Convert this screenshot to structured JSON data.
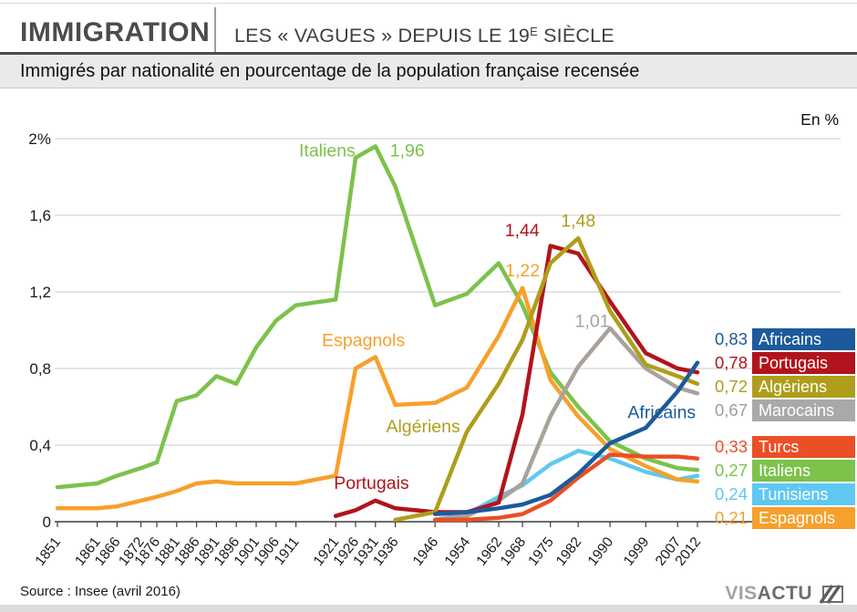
{
  "header": {
    "brand": "IMMIGRATION",
    "title_prefix": "LES « VAGUES » DEPUIS LE 19",
    "title_superscript": "E",
    "title_suffix": " SIÈCLE"
  },
  "subtitle": "Immigrés par nationalité en pourcentage de la population française recensée",
  "chart_data": {
    "type": "line",
    "title": "Immigrés par nationalité en pourcentage de la population française recensée",
    "unit_label": "En %",
    "xlim": [
      1851,
      2012
    ],
    "ylim": [
      0,
      2.0
    ],
    "grid": true,
    "legend_position": "right",
    "x_years": [
      1851,
      1861,
      1866,
      1872,
      1876,
      1881,
      1886,
      1891,
      1896,
      1901,
      1906,
      1911,
      1921,
      1926,
      1931,
      1936,
      1946,
      1954,
      1962,
      1968,
      1975,
      1982,
      1990,
      1999,
      2007,
      2012
    ],
    "y_ticks": [
      {
        "value": 0,
        "label": "0"
      },
      {
        "value": 0.4,
        "label": "0,4"
      },
      {
        "value": 0.8,
        "label": "0,8"
      },
      {
        "value": 1.2,
        "label": "1,2"
      },
      {
        "value": 1.6,
        "label": "1,6"
      },
      {
        "value": 2,
        "label": "2%"
      }
    ],
    "grid_values": [
      0.4,
      0.8,
      1.2,
      1.6,
      2
    ],
    "series": [
      {
        "name": "Tunisiens",
        "color": "#5ec8f2",
        "points": [
          [
            1946,
            0.01
          ],
          [
            1954,
            0.04
          ],
          [
            1962,
            0.13
          ],
          [
            1968,
            0.19
          ],
          [
            1975,
            0.3
          ],
          [
            1982,
            0.37
          ],
          [
            1990,
            0.33
          ],
          [
            1999,
            0.26
          ],
          [
            2007,
            0.22
          ],
          [
            2012,
            0.24
          ]
        ]
      },
      {
        "name": "Italiens",
        "color": "#7cc24b",
        "points": [
          [
            1851,
            0.18
          ],
          [
            1861,
            0.2
          ],
          [
            1866,
            0.24
          ],
          [
            1872,
            0.28
          ],
          [
            1876,
            0.31
          ],
          [
            1881,
            0.63
          ],
          [
            1886,
            0.66
          ],
          [
            1891,
            0.76
          ],
          [
            1896,
            0.72
          ],
          [
            1901,
            0.91
          ],
          [
            1906,
            1.05
          ],
          [
            1911,
            1.13
          ],
          [
            1921,
            1.16
          ],
          [
            1926,
            1.9
          ],
          [
            1931,
            1.96
          ],
          [
            1936,
            1.75
          ],
          [
            1946,
            1.13
          ],
          [
            1954,
            1.19
          ],
          [
            1962,
            1.35
          ],
          [
            1968,
            1.13
          ],
          [
            1975,
            0.78
          ],
          [
            1982,
            0.6
          ],
          [
            1990,
            0.42
          ],
          [
            1999,
            0.33
          ],
          [
            2007,
            0.28
          ],
          [
            2012,
            0.27
          ]
        ]
      },
      {
        "name": "Espagnols",
        "color": "#f7a02b",
        "points": [
          [
            1851,
            0.07
          ],
          [
            1861,
            0.07
          ],
          [
            1866,
            0.08
          ],
          [
            1872,
            0.11
          ],
          [
            1876,
            0.13
          ],
          [
            1881,
            0.16
          ],
          [
            1886,
            0.2
          ],
          [
            1891,
            0.21
          ],
          [
            1896,
            0.2
          ],
          [
            1901,
            0.2
          ],
          [
            1906,
            0.2
          ],
          [
            1911,
            0.2
          ],
          [
            1921,
            0.24
          ],
          [
            1926,
            0.8
          ],
          [
            1931,
            0.86
          ],
          [
            1936,
            0.61
          ],
          [
            1946,
            0.62
          ],
          [
            1954,
            0.7
          ],
          [
            1962,
            0.97
          ],
          [
            1968,
            1.22
          ],
          [
            1975,
            0.74
          ],
          [
            1982,
            0.55
          ],
          [
            1990,
            0.38
          ],
          [
            1999,
            0.29
          ],
          [
            2007,
            0.22
          ],
          [
            2012,
            0.21
          ]
        ]
      },
      {
        "name": "Marocains",
        "color": "#a8a29b",
        "points": [
          [
            1946,
            0.01
          ],
          [
            1954,
            0.03
          ],
          [
            1962,
            0.11
          ],
          [
            1968,
            0.2
          ],
          [
            1975,
            0.55
          ],
          [
            1982,
            0.81
          ],
          [
            1990,
            1.01
          ],
          [
            1999,
            0.8
          ],
          [
            2007,
            0.7
          ],
          [
            2012,
            0.67
          ]
        ]
      },
      {
        "name": "Portugais",
        "color": "#b1141c",
        "points": [
          [
            1921,
            0.03
          ],
          [
            1926,
            0.06
          ],
          [
            1931,
            0.11
          ],
          [
            1936,
            0.07
          ],
          [
            1946,
            0.05
          ],
          [
            1954,
            0.05
          ],
          [
            1962,
            0.1
          ],
          [
            1968,
            0.56
          ],
          [
            1975,
            1.44
          ],
          [
            1982,
            1.4
          ],
          [
            1990,
            1.15
          ],
          [
            1999,
            0.88
          ],
          [
            2007,
            0.8
          ],
          [
            2012,
            0.78
          ]
        ]
      },
      {
        "name": "Algériens",
        "color": "#ae9e1b",
        "points": [
          [
            1936,
            0.01
          ],
          [
            1946,
            0.05
          ],
          [
            1954,
            0.47
          ],
          [
            1962,
            0.72
          ],
          [
            1968,
            0.95
          ],
          [
            1975,
            1.35
          ],
          [
            1982,
            1.48
          ],
          [
            1990,
            1.1
          ],
          [
            1999,
            0.82
          ],
          [
            2007,
            0.76
          ],
          [
            2012,
            0.72
          ]
        ]
      },
      {
        "name": "Turcs",
        "color": "#ea4f26",
        "points": [
          [
            1946,
            0.01
          ],
          [
            1954,
            0.01
          ],
          [
            1962,
            0.02
          ],
          [
            1968,
            0.04
          ],
          [
            1975,
            0.11
          ],
          [
            1982,
            0.23
          ],
          [
            1990,
            0.35
          ],
          [
            1999,
            0.34
          ],
          [
            2007,
            0.34
          ],
          [
            2012,
            0.33
          ]
        ]
      },
      {
        "name": "Africains",
        "color": "#1c5a9c",
        "points": [
          [
            1946,
            0.04
          ],
          [
            1954,
            0.05
          ],
          [
            1962,
            0.07
          ],
          [
            1968,
            0.09
          ],
          [
            1975,
            0.14
          ],
          [
            1982,
            0.25
          ],
          [
            1990,
            0.41
          ],
          [
            1999,
            0.49
          ],
          [
            2007,
            0.68
          ],
          [
            2012,
            0.83
          ]
        ]
      }
    ],
    "annotations": [
      {
        "text": "Italiens",
        "color": "#7cc24b",
        "year": 1931,
        "value": 1.94,
        "anchor": "end",
        "dx": -22
      },
      {
        "text": "1,96",
        "color": "#7cc24b",
        "year": 1931,
        "value": 1.94,
        "anchor": "start",
        "dx": 16
      },
      {
        "text": "1,44",
        "color": "#b1141c",
        "year": 1975,
        "value": 1.525,
        "anchor": "end",
        "dx": -12
      },
      {
        "text": "1,48",
        "color": "#ae9e1b",
        "year": 1982,
        "value": 1.575,
        "anchor": "middle",
        "dx": 0
      },
      {
        "text": "1,22",
        "color": "#f7a02b",
        "year": 1968,
        "value": 1.315,
        "anchor": "middle",
        "dx": 0
      },
      {
        "text": "1,01",
        "color": "#a3a3a3",
        "year": 1986,
        "value": 1.05,
        "anchor": "middle",
        "dx": -2
      },
      {
        "text": "Espagnols",
        "color": "#f7a02b",
        "year": 1928,
        "value": 0.95,
        "anchor": "middle",
        "dx": 0
      },
      {
        "text": "Algériens",
        "color": "#ae9e1b",
        "year": 1943,
        "value": 0.5,
        "anchor": "middle",
        "dx": 0
      },
      {
        "text": "Portugais",
        "color": "#b1141c",
        "year": 1930,
        "value": 0.205,
        "anchor": "middle",
        "dx": 0
      },
      {
        "text": "Africains",
        "color": "#1c5a9c",
        "year": 2003,
        "value": 0.575,
        "anchor": "middle",
        "dx": 0
      }
    ],
    "legend": {
      "groups": [
        {
          "rows": [
            {
              "value": "0,83",
              "label": "Africains",
              "color": "#1c5a9c"
            },
            {
              "value": "0,78",
              "label": "Portugais",
              "color": "#b1141c"
            },
            {
              "value": "0,72",
              "label": "Algériens",
              "color": "#ae9e1b"
            },
            {
              "value": "0,67",
              "label": "Marocains",
              "color": "#a9a9a9",
              "value_color": "#9e9e9e"
            }
          ]
        },
        {
          "rows": [
            {
              "value": "0,33",
              "label": "Turcs",
              "color": "#ea4f26"
            },
            {
              "value": "0,27",
              "label": "Italiens",
              "color": "#7cc24b"
            },
            {
              "value": "0,24",
              "label": "Tunisiens",
              "color": "#5ec8f2"
            },
            {
              "value": "0,21",
              "label": "Espagnols",
              "color": "#f7a02b"
            }
          ]
        }
      ]
    }
  },
  "footer": {
    "source": "Source : Insee (avril 2016)",
    "logo_light": "VIS",
    "logo_dark": "ACTU"
  }
}
